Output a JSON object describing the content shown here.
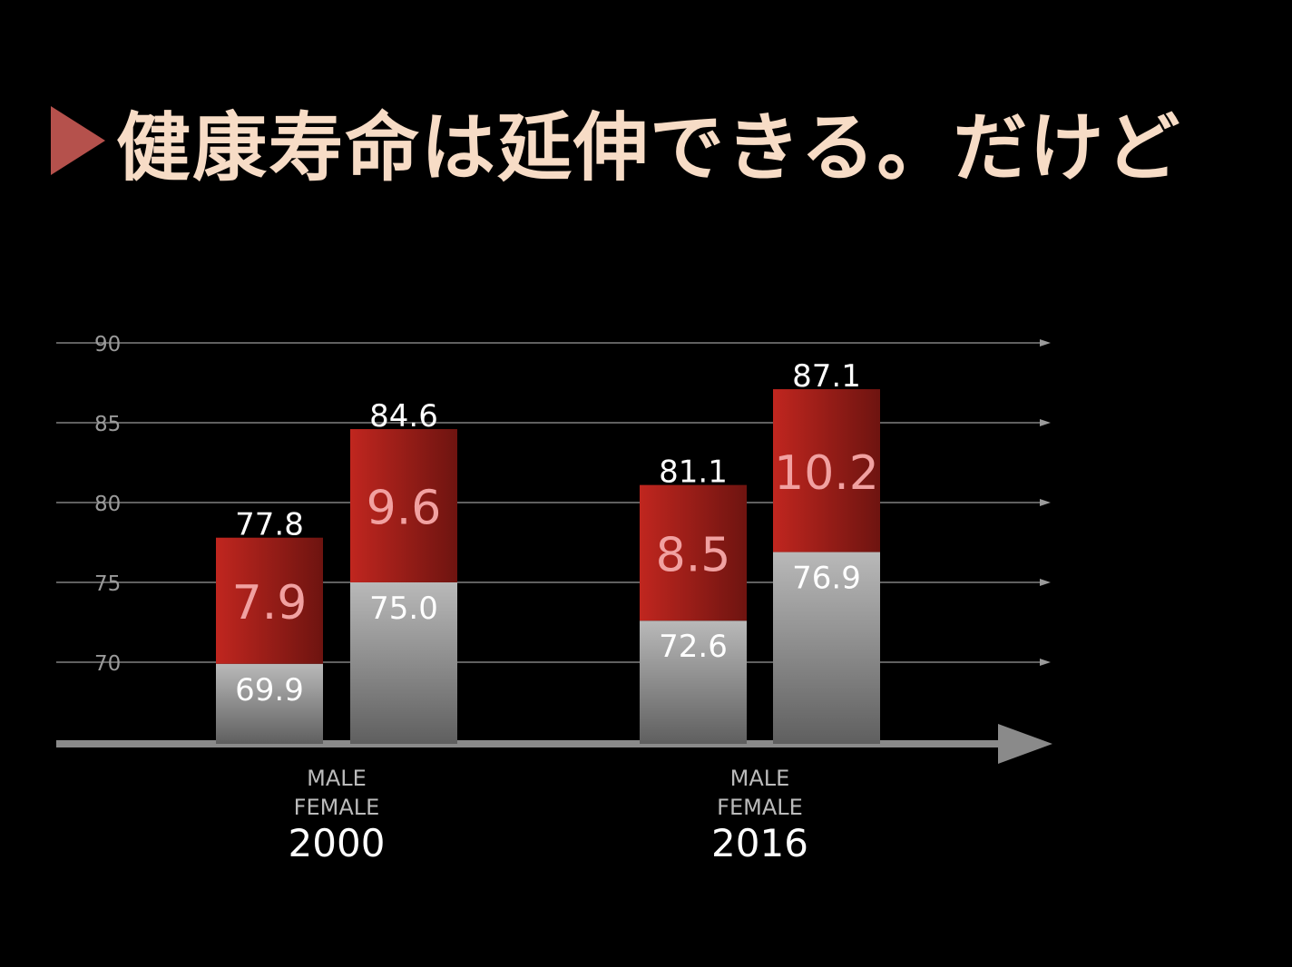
{
  "header": {
    "title": "健康寿命は延伸できる。だけど",
    "title_color": "#f7dcc6",
    "marker_color": "#b5514c"
  },
  "colors": {
    "healthy_top": "#b9b9b9",
    "healthy_bottom": "#5f5f5f",
    "gap_left": "#c0261f",
    "gap_right": "#6e1410",
    "gap_label": "#f1a1a1",
    "value_label": "#ffffff",
    "grid": "#9a9a9a",
    "axis": "#8a8a8a",
    "tick_label": "#999999",
    "group_label": "#bbbbbb",
    "year_label": "#ffffff"
  },
  "chart_data": {
    "type": "bar",
    "stacked": true,
    "y_ticks": [
      70,
      75,
      80,
      85,
      90
    ],
    "ylim": [
      65,
      90
    ],
    "grid": true,
    "groups": [
      {
        "year": "2000",
        "labels": [
          "MALE",
          "FEMALE"
        ],
        "bars": [
          {
            "name": "MALE",
            "healthy": 69.9,
            "gap": 7.9,
            "total": 77.8,
            "healthy_label": "69.9",
            "gap_label": "7.9",
            "total_label": "77.8"
          },
          {
            "name": "FEMALE",
            "healthy": 75.0,
            "gap": 9.6,
            "total": 84.6,
            "healthy_label": "75.0",
            "gap_label": "9.6",
            "total_label": "84.6"
          }
        ]
      },
      {
        "year": "2016",
        "labels": [
          "MALE",
          "FEMALE"
        ],
        "bars": [
          {
            "name": "MALE",
            "healthy": 72.6,
            "gap": 8.5,
            "total": 81.1,
            "healthy_label": "72.6",
            "gap_label": "8.5",
            "total_label": "81.1"
          },
          {
            "name": "FEMALE",
            "healthy": 76.9,
            "gap": 10.2,
            "total": 87.1,
            "healthy_label": "76.9",
            "gap_label": "10.2",
            "total_label": "87.1"
          }
        ]
      }
    ]
  }
}
